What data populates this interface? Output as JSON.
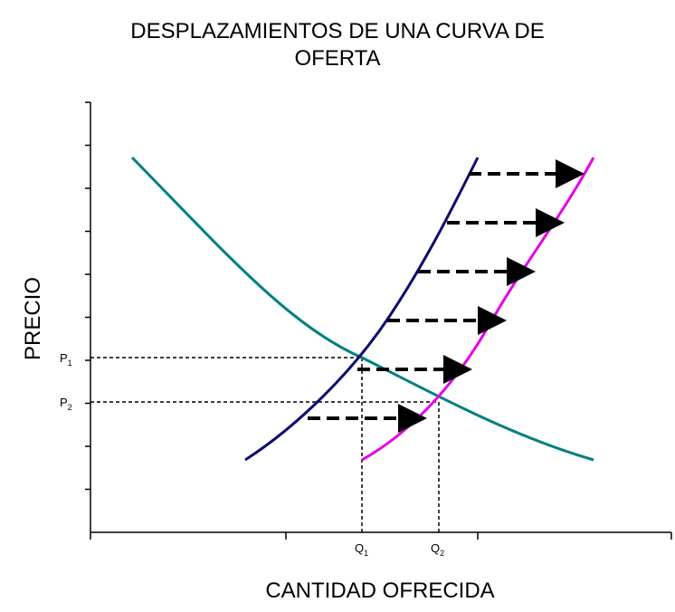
{
  "chart_data": {
    "type": "line",
    "title_line1": "DESPLAZAMIENTOS DE UNA CURVA DE",
    "title_line2": "OFERTA",
    "xlabel": "CANTIDAD OFRECIDA",
    "ylabel": "PRECIO",
    "grid": false,
    "x_markers": [
      {
        "letter": "Q",
        "sub": "1"
      },
      {
        "letter": "Q",
        "sub": "2"
      }
    ],
    "y_markers": [
      {
        "letter": "P",
        "sub": "1"
      },
      {
        "letter": "P",
        "sub": "2"
      }
    ],
    "series": [
      {
        "color": "#008080"
      },
      {
        "color": "#0d0d6e"
      },
      {
        "color": "#e600e6"
      }
    ],
    "shift_arrows": 6,
    "arrow_color": "#000000"
  }
}
